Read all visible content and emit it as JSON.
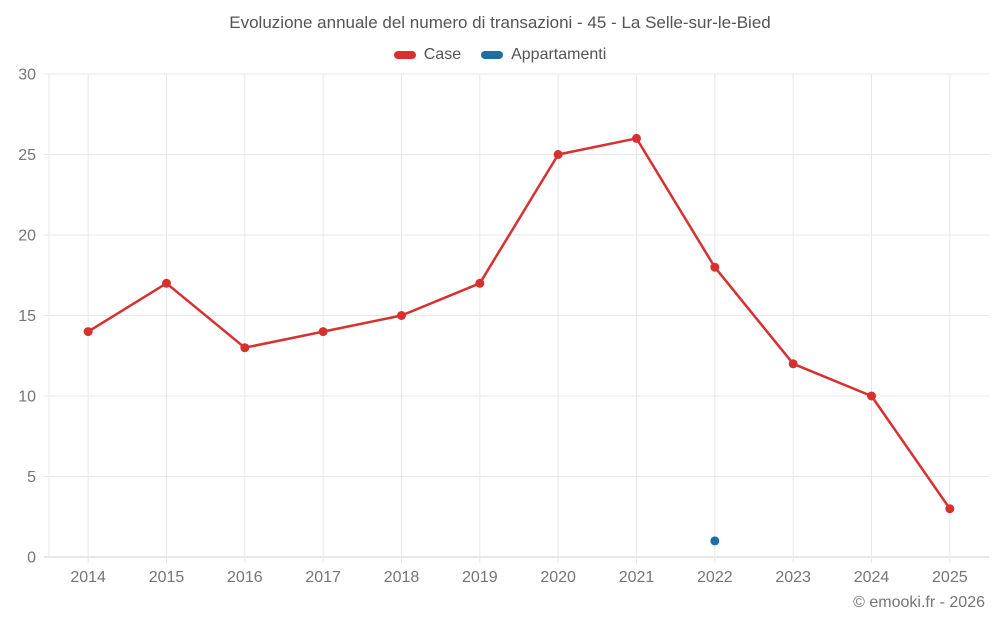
{
  "chart_data": {
    "type": "line",
    "title": "Evoluzione annuale del numero di transazioni - 45 - La Selle-sur-le-Bied",
    "categories": [
      "2014",
      "2015",
      "2016",
      "2017",
      "2018",
      "2019",
      "2020",
      "2021",
      "2022",
      "2023",
      "2024",
      "2025"
    ],
    "series": [
      {
        "name": "Case",
        "color": "#d7302f",
        "values": [
          14,
          17,
          13,
          14,
          15,
          17,
          25,
          26,
          18,
          12,
          10,
          3
        ]
      },
      {
        "name": "Appartamenti",
        "color": "#1c6ea4",
        "values": [
          null,
          null,
          null,
          null,
          null,
          null,
          null,
          null,
          1,
          null,
          null,
          null
        ]
      }
    ],
    "ylim": [
      0,
      30
    ],
    "yticks": [
      0,
      5,
      10,
      15,
      20,
      25,
      30
    ],
    "grid": true,
    "legend_position": "top",
    "xlabel": "",
    "ylabel": ""
  },
  "footer": {
    "copyright": "© emooki.fr - 2026"
  },
  "colors": {
    "grid_line": "#e8e8e8",
    "axis_line": "#cfcfcf",
    "tick_label": "#757575",
    "title_text": "#545454"
  }
}
